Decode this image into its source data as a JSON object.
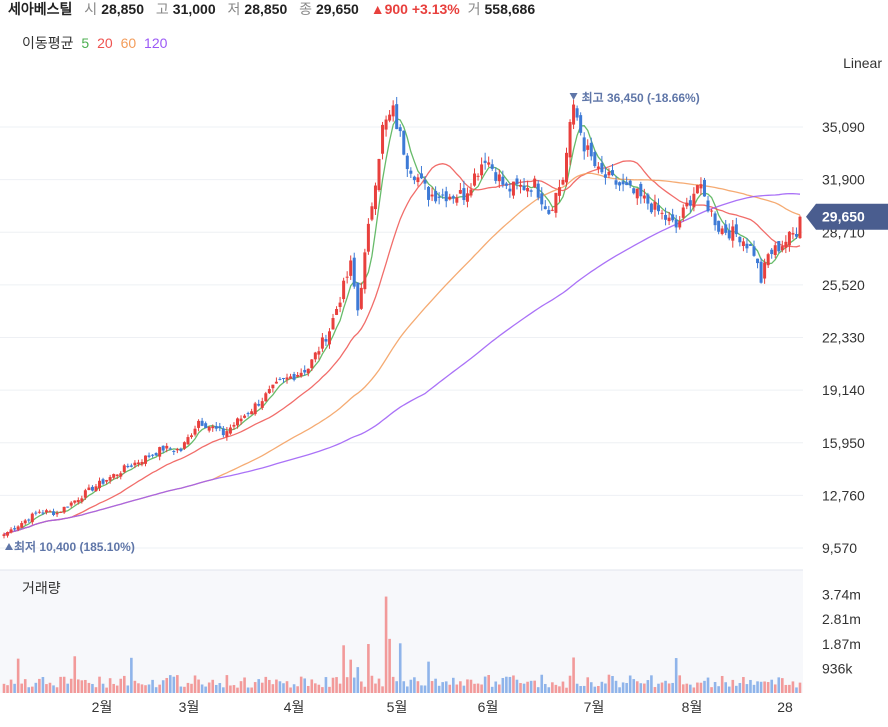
{
  "header": {
    "stock_name": "세아베스틸",
    "open_label": "시",
    "open_value": "28,850",
    "high_label": "고",
    "high_value": "31,000",
    "low_label": "저",
    "low_value": "28,850",
    "close_label": "종",
    "close_value": "29,650",
    "change_text": "▲900 +3.13%",
    "volume_label": "거",
    "volume_value": "558,686"
  },
  "ma_legend": {
    "label": "이동평균",
    "items": [
      {
        "label": "5",
        "color": "#4caf50"
      },
      {
        "label": "20",
        "color": "#ef5350"
      },
      {
        "label": "60",
        "color": "#f39c5a"
      },
      {
        "label": "120",
        "color": "#9b59f6"
      }
    ]
  },
  "scale_label": "Linear",
  "volume_title": "거래량",
  "colors": {
    "up": "#e8403d",
    "down": "#3d7ad6",
    "vol_up": "#f29a9a",
    "vol_down": "#8fb4ea",
    "marker": "#4a5d8f"
  },
  "chart_data": {
    "type": "candlestick",
    "price_axis": {
      "ticks": [
        "35,090",
        "31,900",
        "28,710",
        "25,520",
        "22,330",
        "19,140",
        "15,950",
        "12,760",
        "9,570"
      ],
      "ylim": [
        9570,
        38280
      ]
    },
    "volume_axis": {
      "ticks": [
        "3.74m",
        "2.81m",
        "1.87m",
        "936k"
      ]
    },
    "x_axis": {
      "labels": [
        "2월",
        "3월",
        "4월",
        "5월",
        "6월",
        "7월",
        "8월",
        "28"
      ]
    },
    "current_price": "29,650",
    "annotations": {
      "high": {
        "text": "최고 36,450 (-18.66%)",
        "value": 36450
      },
      "low": {
        "text": "최저 10,400 (185.10%)",
        "value": 10400
      }
    },
    "ohlc_keypoints": [
      [
        0,
        10400
      ],
      [
        10,
        11800
      ],
      [
        15,
        11700
      ],
      [
        25,
        13200
      ],
      [
        35,
        14500
      ],
      [
        45,
        15600
      ],
      [
        50,
        15500
      ],
      [
        55,
        17300
      ],
      [
        62,
        16500
      ],
      [
        70,
        18000
      ],
      [
        78,
        19600
      ],
      [
        86,
        20500
      ],
      [
        92,
        22800
      ],
      [
        98,
        26700
      ],
      [
        100,
        24000
      ],
      [
        104,
        30500
      ],
      [
        107,
        35000
      ],
      [
        110,
        36000
      ],
      [
        114,
        33000
      ],
      [
        120,
        31000
      ],
      [
        130,
        31000
      ],
      [
        136,
        33300
      ],
      [
        142,
        31300
      ],
      [
        150,
        31600
      ],
      [
        154,
        30000
      ],
      [
        158,
        32000
      ],
      [
        161,
        36450
      ],
      [
        164,
        34000
      ],
      [
        168,
        32300
      ],
      [
        176,
        31300
      ],
      [
        182,
        30500
      ],
      [
        190,
        29000
      ],
      [
        196,
        31600
      ],
      [
        202,
        29000
      ],
      [
        208,
        28500
      ],
      [
        212,
        27500
      ],
      [
        214,
        25800
      ],
      [
        216,
        27300
      ],
      [
        220,
        28000
      ],
      [
        224,
        28800
      ],
      [
        225,
        29650
      ]
    ],
    "moving_averages": [
      {
        "name": "5",
        "period": 5
      },
      {
        "name": "20",
        "period": 20
      },
      {
        "name": "60",
        "period": 60
      },
      {
        "name": "120",
        "period": 120
      }
    ]
  }
}
